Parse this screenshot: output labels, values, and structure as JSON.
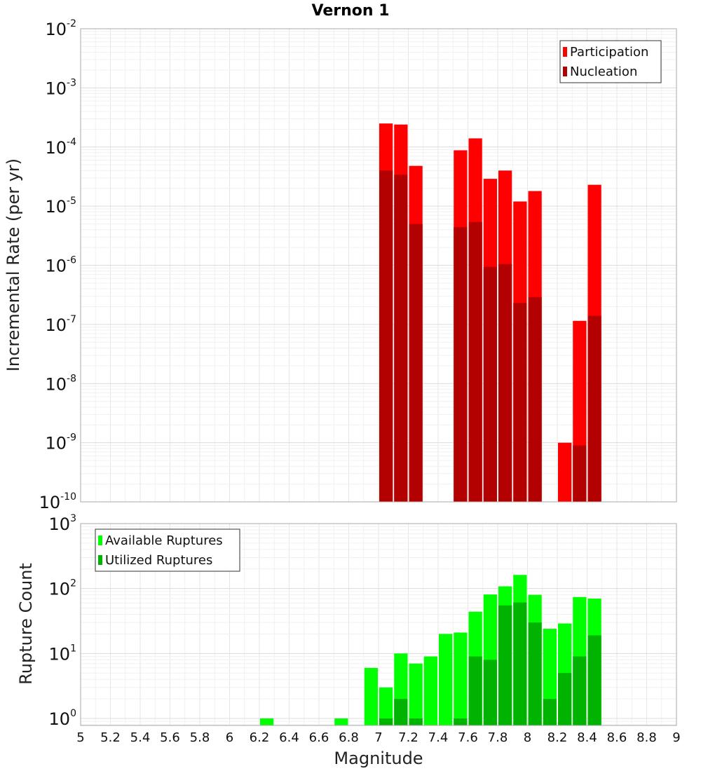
{
  "chart_data": [
    {
      "type": "bar",
      "title": "Vernon 1",
      "xlabel": "",
      "ylabel": "Incremental Rate (per yr)",
      "yscale": "log",
      "ylim": [
        1e-10,
        0.01
      ],
      "xlim": [
        5,
        9
      ],
      "y_ticks": [
        {
          "base": "10",
          "exp": "-10",
          "value": 1e-10
        },
        {
          "base": "10",
          "exp": "-9",
          "value": 1e-09
        },
        {
          "base": "10",
          "exp": "-8",
          "value": 1e-08
        },
        {
          "base": "10",
          "exp": "-7",
          "value": 1e-07
        },
        {
          "base": "10",
          "exp": "-6",
          "value": 1e-06
        },
        {
          "base": "10",
          "exp": "-5",
          "value": 1e-05
        },
        {
          "base": "10",
          "exp": "-4",
          "value": 0.0001
        },
        {
          "base": "10",
          "exp": "-3",
          "value": 0.001
        },
        {
          "base": "10",
          "exp": "-2",
          "value": 0.01
        }
      ],
      "legend_position": "top-right",
      "series": [
        {
          "name": "Participation",
          "color": "#ff0000",
          "points": [
            {
              "x": 7.05,
              "y": 0.00025
            },
            {
              "x": 7.15,
              "y": 0.00024
            },
            {
              "x": 7.25,
              "y": 4.8e-05
            },
            {
              "x": 7.55,
              "y": 8.8e-05
            },
            {
              "x": 7.65,
              "y": 0.00014
            },
            {
              "x": 7.75,
              "y": 2.9e-05
            },
            {
              "x": 7.85,
              "y": 4e-05
            },
            {
              "x": 7.95,
              "y": 1.2e-05
            },
            {
              "x": 8.05,
              "y": 1.8e-05
            },
            {
              "x": 8.25,
              "y": 1e-09
            },
            {
              "x": 8.35,
              "y": 1.15e-07
            },
            {
              "x": 8.45,
              "y": 2.3e-05
            }
          ]
        },
        {
          "name": "Nucleation",
          "color": "#b30000",
          "points": [
            {
              "x": 7.05,
              "y": 4e-05
            },
            {
              "x": 7.15,
              "y": 3.4e-05
            },
            {
              "x": 7.25,
              "y": 5e-06
            },
            {
              "x": 7.55,
              "y": 4.4e-06
            },
            {
              "x": 7.65,
              "y": 5.4e-06
            },
            {
              "x": 7.75,
              "y": 9.4e-07
            },
            {
              "x": 7.85,
              "y": 1.05e-06
            },
            {
              "x": 7.95,
              "y": 2.3e-07
            },
            {
              "x": 8.05,
              "y": 2.9e-07
            },
            {
              "x": 8.35,
              "y": 9e-10
            },
            {
              "x": 8.45,
              "y": 1.4e-07
            }
          ]
        }
      ]
    },
    {
      "type": "bar",
      "title": "",
      "xlabel": "Magnitude",
      "ylabel": "Rupture Count",
      "yscale": "log",
      "ylim": [
        0.78,
        1000
      ],
      "xlim": [
        5,
        9
      ],
      "x_ticks": [
        "5",
        "5.2",
        "5.4",
        "5.6",
        "5.8",
        "6",
        "6.2",
        "6.4",
        "6.6",
        "6.8",
        "7",
        "7.2",
        "7.4",
        "7.6",
        "7.8",
        "8",
        "8.2",
        "8.4",
        "8.6",
        "8.8",
        "9"
      ],
      "y_ticks": [
        {
          "base": "10",
          "exp": "0",
          "value": 1
        },
        {
          "base": "10",
          "exp": "1",
          "value": 10
        },
        {
          "base": "10",
          "exp": "2",
          "value": 100
        },
        {
          "base": "10",
          "exp": "3",
          "value": 1000
        }
      ],
      "legend_position": "top-left",
      "series": [
        {
          "name": "Available Ruptures",
          "color": "#00ff00",
          "points": [
            {
              "x": 6.25,
              "y": 1
            },
            {
              "x": 6.75,
              "y": 1
            },
            {
              "x": 6.95,
              "y": 6
            },
            {
              "x": 7.05,
              "y": 3
            },
            {
              "x": 7.15,
              "y": 10
            },
            {
              "x": 7.25,
              "y": 7
            },
            {
              "x": 7.35,
              "y": 9
            },
            {
              "x": 7.45,
              "y": 20
            },
            {
              "x": 7.55,
              "y": 21
            },
            {
              "x": 7.65,
              "y": 44
            },
            {
              "x": 7.75,
              "y": 81
            },
            {
              "x": 7.85,
              "y": 108
            },
            {
              "x": 7.95,
              "y": 162
            },
            {
              "x": 8.05,
              "y": 80
            },
            {
              "x": 8.15,
              "y": 24
            },
            {
              "x": 8.25,
              "y": 29
            },
            {
              "x": 8.35,
              "y": 74
            },
            {
              "x": 8.45,
              "y": 70
            }
          ]
        },
        {
          "name": "Utilized Ruptures",
          "color": "#00b300",
          "points": [
            {
              "x": 7.05,
              "y": 1
            },
            {
              "x": 7.15,
              "y": 2
            },
            {
              "x": 7.25,
              "y": 1
            },
            {
              "x": 7.55,
              "y": 1
            },
            {
              "x": 7.65,
              "y": 9
            },
            {
              "x": 7.75,
              "y": 8
            },
            {
              "x": 7.85,
              "y": 55
            },
            {
              "x": 7.95,
              "y": 61
            },
            {
              "x": 8.05,
              "y": 30
            },
            {
              "x": 8.15,
              "y": 2
            },
            {
              "x": 8.25,
              "y": 5
            },
            {
              "x": 8.35,
              "y": 9
            },
            {
              "x": 8.45,
              "y": 19
            }
          ]
        }
      ]
    }
  ]
}
